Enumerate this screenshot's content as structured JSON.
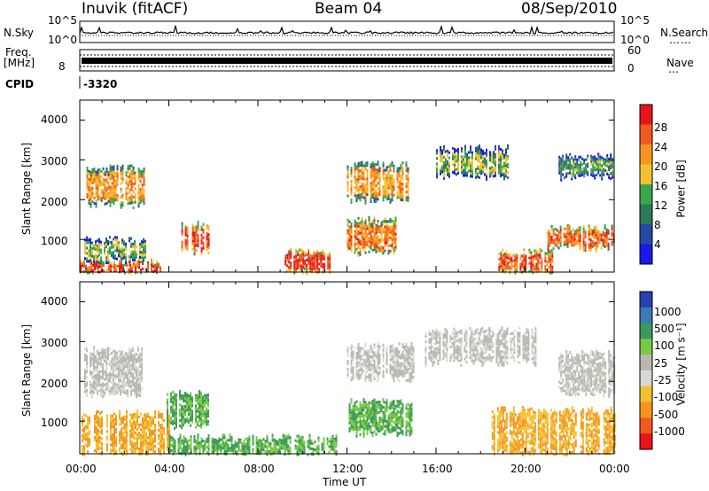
{
  "header": {
    "station": "Inuvik (fitACF)",
    "beam": "Beam 04",
    "date": "08/Sep/2010"
  },
  "aux_panels": {
    "nsky_label": "N.Sky",
    "nsky_ticks": [
      "10^5",
      "10^0"
    ],
    "nsearch_label": "N.Search",
    "nsearch_ticks": [
      "10^5",
      "10^0"
    ],
    "freq_label_1": "Freq.",
    "freq_label_2": "[MHz]",
    "freq_ticks": [
      "8"
    ],
    "nave_label": "Nave",
    "nave_ticks": [
      "60",
      "0"
    ],
    "cpid_label": "CPID",
    "cpid_value": "-3320"
  },
  "panels": {
    "power": {
      "ylabel": "Slant Range [km]",
      "yticks": [
        "4000",
        "3000",
        "2000",
        "1000"
      ],
      "cbar_label": "Power [dB]",
      "cbar_ticks": [
        "28",
        "24",
        "20",
        "16",
        "12",
        "8",
        "4"
      ],
      "cbar_colors": [
        "#e8141a",
        "#f05a1e",
        "#f7941d",
        "#f2c12e",
        "#38a84a",
        "#2d7a5a",
        "#224aa6",
        "#1a1ae8"
      ]
    },
    "velocity": {
      "ylabel": "Slant Range [km]",
      "yticks": [
        "4000",
        "3000",
        "2000",
        "1000"
      ],
      "cbar_label": "Velocity [m s⁻¹]",
      "cbar_ticks": [
        "1000",
        "500",
        "100",
        "25",
        "-25",
        "-100",
        "-500",
        "-1000"
      ],
      "cbar_colors": [
        "#2a3fb0",
        "#3a7ab5",
        "#3a9a5a",
        "#7ac943",
        "#b8b8b0",
        "#d8d8d0",
        "#f2c12e",
        "#f7941d",
        "#f05a1e",
        "#e8141a"
      ]
    }
  },
  "xaxis": {
    "label": "Time UT",
    "ticks": [
      "00:00",
      "04:00",
      "08:00",
      "12:00",
      "16:00",
      "20:00",
      "00:00"
    ]
  },
  "chart_data": [
    {
      "type": "heatmap",
      "title": "Power",
      "xlabel": "Time UT",
      "ylabel": "Slant Range [km]",
      "xlim": [
        "00:00",
        "24:00"
      ],
      "ylim": [
        180,
        4500
      ],
      "colorbar": {
        "label": "Power [dB]",
        "range": [
          0,
          30
        ]
      },
      "regions": [
        {
          "t0": 0.0,
          "t1": 3.6,
          "r0": 180,
          "r1": 450,
          "value": 26
        },
        {
          "t0": 0.2,
          "t1": 3.0,
          "r0": 500,
          "r1": 1000,
          "value": 14
        },
        {
          "t0": 0.3,
          "t1": 2.9,
          "r0": 1900,
          "r1": 2800,
          "value": 20
        },
        {
          "t0": 4.4,
          "t1": 5.8,
          "r0": 700,
          "r1": 1400,
          "value": 26
        },
        {
          "t0": 9.2,
          "t1": 11.2,
          "r0": 180,
          "r1": 700,
          "value": 27
        },
        {
          "t0": 12.0,
          "t1": 14.2,
          "r0": 700,
          "r1": 1500,
          "value": 22
        },
        {
          "t0": 12.0,
          "t1": 14.8,
          "r0": 2000,
          "r1": 2900,
          "value": 20
        },
        {
          "t0": 16.0,
          "t1": 19.2,
          "r0": 2600,
          "r1": 3300,
          "value": 14
        },
        {
          "t0": 18.8,
          "t1": 21.2,
          "r0": 180,
          "r1": 700,
          "value": 25
        },
        {
          "t0": 21.0,
          "t1": 24.0,
          "r0": 800,
          "r1": 1300,
          "value": 24
        },
        {
          "t0": 21.5,
          "t1": 24.0,
          "r0": 2600,
          "r1": 3100,
          "value": 12
        }
      ]
    },
    {
      "type": "heatmap",
      "title": "Velocity",
      "xlabel": "Time UT",
      "ylabel": "Slant Range [km]",
      "xlim": [
        "00:00",
        "24:00"
      ],
      "ylim": [
        180,
        4500
      ],
      "colorbar": {
        "label": "Velocity [m s⁻¹]",
        "range": [
          -1000,
          1000
        ]
      },
      "regions": [
        {
          "t0": 0.2,
          "t1": 2.8,
          "r0": 1700,
          "r1": 2800,
          "value": 0
        },
        {
          "t0": 0.0,
          "t1": 4.0,
          "r0": 180,
          "r1": 1200,
          "value": -300
        },
        {
          "t0": 3.9,
          "t1": 5.8,
          "r0": 900,
          "r1": 1700,
          "value": 200
        },
        {
          "t0": 4.0,
          "t1": 11.5,
          "r0": 180,
          "r1": 600,
          "value": 150
        },
        {
          "t0": 12.0,
          "t1": 15.0,
          "r0": 700,
          "r1": 1500,
          "value": 250
        },
        {
          "t0": 12.0,
          "t1": 15.0,
          "r0": 2100,
          "r1": 2900,
          "value": 0
        },
        {
          "t0": 15.5,
          "t1": 20.5,
          "r0": 2500,
          "r1": 3300,
          "value": 0
        },
        {
          "t0": 18.5,
          "t1": 24.0,
          "r0": 180,
          "r1": 1300,
          "value": -350
        },
        {
          "t0": 21.5,
          "t1": 24.0,
          "r0": 1700,
          "r1": 2700,
          "value": 0
        }
      ]
    }
  ]
}
